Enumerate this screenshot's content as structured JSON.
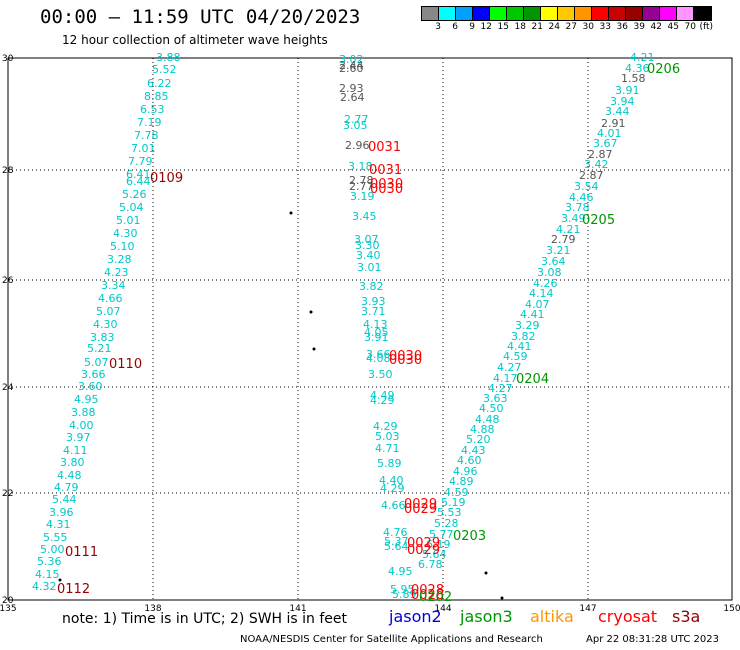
{
  "title": "00:00 – 11:59 UTC 04/20/2023",
  "subtitle": "12 hour collection of altimeter wave heights",
  "colorbar": {
    "labels": [
      "3",
      "6",
      "9",
      "12",
      "15",
      "18",
      "21",
      "24",
      "27",
      "30",
      "33",
      "36",
      "39",
      "42",
      "45",
      "70",
      "(ft)"
    ],
    "colors": [
      "#888888",
      "#00ffff",
      "#00a0ff",
      "#0000ff",
      "#00ff00",
      "#00c800",
      "#009600",
      "#ffff00",
      "#ffc800",
      "#ff9600",
      "#ff0000",
      "#c80000",
      "#960000",
      "#960096",
      "#ff00ff",
      "#ff96ff",
      "#000000"
    ]
  },
  "axes": {
    "x_ticks": [
      "135",
      "138",
      "141",
      "144",
      "147",
      "150"
    ],
    "y_ticks": [
      "20",
      "22",
      "24",
      "26",
      "28",
      "30"
    ]
  },
  "labels_values": [
    {
      "t": "3.88",
      "c": "#00c8c8"
    },
    {
      "t": "5.52",
      "c": "#00c8c8"
    },
    {
      "t": "6.22",
      "c": "#00c8c8"
    },
    {
      "t": "8.85",
      "c": "#00c8c8"
    },
    {
      "t": "6.53",
      "c": "#00c8c8"
    },
    {
      "t": "7.19",
      "c": "#00c8c8"
    },
    {
      "t": "7.78",
      "c": "#00c8c8"
    },
    {
      "t": "7.01",
      "c": "#00c8c8"
    },
    {
      "t": "7.79",
      "c": "#00c8c8"
    },
    {
      "t": "6.41",
      "c": "#00c8c8"
    },
    {
      "t": "6.44",
      "c": "#00c8c8"
    },
    {
      "t": "5.26",
      "c": "#00c8c8"
    },
    {
      "t": "5.04",
      "c": "#00c8c8"
    },
    {
      "t": "5.01",
      "c": "#00c8c8"
    },
    {
      "t": "4.30",
      "c": "#00c8c8"
    },
    {
      "t": "5.10",
      "c": "#00c8c8"
    },
    {
      "t": "3.28",
      "c": "#00c8c8"
    },
    {
      "t": "4.23",
      "c": "#00c8c8"
    },
    {
      "t": "3.34",
      "c": "#00c8c8"
    },
    {
      "t": "4.66",
      "c": "#00c8c8"
    },
    {
      "t": "5.07",
      "c": "#00c8c8"
    },
    {
      "t": "4.30",
      "c": "#00c8c8"
    },
    {
      "t": "3.83",
      "c": "#00c8c8"
    },
    {
      "t": "5.21",
      "c": "#00c8c8"
    },
    {
      "t": "5.07",
      "c": "#00c8c8"
    },
    {
      "t": "3.66",
      "c": "#00c8c8"
    },
    {
      "t": "3.60",
      "c": "#00c8c8"
    },
    {
      "t": "4.95",
      "c": "#00c8c8"
    },
    {
      "t": "3.88",
      "c": "#00c8c8"
    },
    {
      "t": "4.00",
      "c": "#00c8c8"
    },
    {
      "t": "3.97",
      "c": "#00c8c8"
    },
    {
      "t": "4.11",
      "c": "#00c8c8"
    },
    {
      "t": "3.80",
      "c": "#00c8c8"
    },
    {
      "t": "4.48",
      "c": "#00c8c8"
    },
    {
      "t": "4.79",
      "c": "#00c8c8"
    },
    {
      "t": "5.44",
      "c": "#00c8c8"
    },
    {
      "t": "3.96",
      "c": "#00c8c8"
    },
    {
      "t": "4.31",
      "c": "#00c8c8"
    },
    {
      "t": "5.55",
      "c": "#00c8c8"
    },
    {
      "t": "5.00",
      "c": "#00c8c8"
    },
    {
      "t": "5.36",
      "c": "#00c8c8"
    },
    {
      "t": "4.15",
      "c": "#00c8c8"
    },
    {
      "t": "4.32",
      "c": "#00c8c8"
    },
    {
      "t": "3.02",
      "c": "#00c8c8"
    },
    {
      "t": "2.44",
      "c": "#555555"
    },
    {
      "t": "2.60",
      "c": "#555555"
    },
    {
      "t": "2.93",
      "c": "#555555"
    },
    {
      "t": "2.64",
      "c": "#555555"
    },
    {
      "t": "2.77",
      "c": "#00c8c8"
    },
    {
      "t": "3.05",
      "c": "#00c8c8"
    },
    {
      "t": "2.96",
      "c": "#555555"
    },
    {
      "t": "3.18",
      "c": "#00c8c8"
    },
    {
      "t": "2.78",
      "c": "#555555"
    },
    {
      "t": "2.77",
      "c": "#555555"
    },
    {
      "t": "3.19",
      "c": "#00c8c8"
    },
    {
      "t": "3.45",
      "c": "#00c8c8"
    },
    {
      "t": "3.07",
      "c": "#00c8c8"
    },
    {
      "t": "3.30",
      "c": "#00c8c8"
    },
    {
      "t": "3.40",
      "c": "#00c8c8"
    },
    {
      "t": "3.01",
      "c": "#00c8c8"
    },
    {
      "t": "3.82",
      "c": "#00c8c8"
    },
    {
      "t": "3.93",
      "c": "#00c8c8"
    },
    {
      "t": "3.71",
      "c": "#00c8c8"
    },
    {
      "t": "4.13",
      "c": "#00c8c8"
    },
    {
      "t": "4.05",
      "c": "#00c8c8"
    },
    {
      "t": "3.91",
      "c": "#00c8c8"
    },
    {
      "t": "3.66",
      "c": "#00c8c8"
    },
    {
      "t": "4.08",
      "c": "#00c8c8"
    },
    {
      "t": "3.50",
      "c": "#00c8c8"
    },
    {
      "t": "4.49",
      "c": "#00c8c8"
    },
    {
      "t": "4.29",
      "c": "#00c8c8"
    },
    {
      "t": "4.29",
      "c": "#00c8c8"
    },
    {
      "t": "5.03",
      "c": "#00c8c8"
    },
    {
      "t": "4.71",
      "c": "#00c8c8"
    },
    {
      "t": "5.89",
      "c": "#00c8c8"
    },
    {
      "t": "4.40",
      "c": "#00c8c8"
    },
    {
      "t": "4.29",
      "c": "#00c8c8"
    },
    {
      "t": "4.66",
      "c": "#00c8c8"
    },
    {
      "t": "4.76",
      "c": "#00c8c8"
    },
    {
      "t": "5.37",
      "c": "#00c8c8"
    },
    {
      "t": "5.64",
      "c": "#00c8c8"
    },
    {
      "t": "4.95",
      "c": "#00c8c8"
    },
    {
      "t": "5.95",
      "c": "#00c8c8"
    },
    {
      "t": "5.89",
      "c": "#00c8c8"
    },
    {
      "t": "4.21",
      "c": "#00c8c8"
    },
    {
      "t": "4.36",
      "c": "#00c8c8"
    },
    {
      "t": "1.58",
      "c": "#555555"
    },
    {
      "t": "3.91",
      "c": "#00c8c8"
    },
    {
      "t": "3.94",
      "c": "#00c8c8"
    },
    {
      "t": "3.44",
      "c": "#00c8c8"
    },
    {
      "t": "2.91",
      "c": "#555555"
    },
    {
      "t": "4.01",
      "c": "#00c8c8"
    },
    {
      "t": "3.67",
      "c": "#00c8c8"
    },
    {
      "t": "2.87",
      "c": "#555555"
    },
    {
      "t": "3.42",
      "c": "#00c8c8"
    },
    {
      "t": "2.87",
      "c": "#555555"
    },
    {
      "t": "3.54",
      "c": "#00c8c8"
    },
    {
      "t": "4.46",
      "c": "#00c8c8"
    },
    {
      "t": "3.78",
      "c": "#00c8c8"
    },
    {
      "t": "3.49",
      "c": "#00c8c8"
    },
    {
      "t": "4.21",
      "c": "#00c8c8"
    },
    {
      "t": "2.79",
      "c": "#555555"
    },
    {
      "t": "3.21",
      "c": "#00c8c8"
    },
    {
      "t": "3.64",
      "c": "#00c8c8"
    },
    {
      "t": "3.08",
      "c": "#00c8c8"
    },
    {
      "t": "4.26",
      "c": "#00c8c8"
    },
    {
      "t": "4.14",
      "c": "#00c8c8"
    },
    {
      "t": "4.07",
      "c": "#00c8c8"
    },
    {
      "t": "4.41",
      "c": "#00c8c8"
    },
    {
      "t": "3.29",
      "c": "#00c8c8"
    },
    {
      "t": "3.82",
      "c": "#00c8c8"
    },
    {
      "t": "4.41",
      "c": "#00c8c8"
    },
    {
      "t": "4.59",
      "c": "#00c8c8"
    },
    {
      "t": "4.27",
      "c": "#00c8c8"
    },
    {
      "t": "4.17",
      "c": "#00c8c8"
    },
    {
      "t": "4.27",
      "c": "#00c8c8"
    },
    {
      "t": "3.63",
      "c": "#00c8c8"
    },
    {
      "t": "4.50",
      "c": "#00c8c8"
    },
    {
      "t": "4.48",
      "c": "#00c8c8"
    },
    {
      "t": "4.88",
      "c": "#00c8c8"
    },
    {
      "t": "5.20",
      "c": "#00c8c8"
    },
    {
      "t": "4.43",
      "c": "#00c8c8"
    },
    {
      "t": "4.60",
      "c": "#00c8c8"
    },
    {
      "t": "4.96",
      "c": "#00c8c8"
    },
    {
      "t": "4.89",
      "c": "#00c8c8"
    },
    {
      "t": "4.59",
      "c": "#00c8c8"
    },
    {
      "t": "5.19",
      "c": "#00c8c8"
    },
    {
      "t": "5.53",
      "c": "#00c8c8"
    },
    {
      "t": "5.28",
      "c": "#00c8c8"
    },
    {
      "t": "5.77",
      "c": "#00c8c8"
    },
    {
      "t": "6.19",
      "c": "#00c8c8"
    },
    {
      "t": "5.64",
      "c": "#00c8c8"
    },
    {
      "t": "6.78",
      "c": "#00c8c8"
    }
  ],
  "time_labels": [
    {
      "t": "0109",
      "c": "#960000"
    },
    {
      "t": "0110",
      "c": "#960000"
    },
    {
      "t": "0111",
      "c": "#960000"
    },
    {
      "t": "0112",
      "c": "#960000"
    },
    {
      "t": "0031",
      "c": "#ff0000"
    },
    {
      "t": "0031",
      "c": "#ff0000"
    },
    {
      "t": "0030",
      "c": "#ff0000"
    },
    {
      "t": "0030",
      "c": "#ff0000"
    },
    {
      "t": "0030",
      "c": "#ff0000"
    },
    {
      "t": "0030",
      "c": "#ff0000"
    },
    {
      "t": "0029",
      "c": "#ff0000"
    },
    {
      "t": "0029",
      "c": "#ff0000"
    },
    {
      "t": "0029",
      "c": "#ff0000"
    },
    {
      "t": "0029",
      "c": "#ff0000"
    },
    {
      "t": "0028",
      "c": "#ff0000"
    },
    {
      "t": "0028",
      "c": "#ff0000"
    },
    {
      "t": "0206",
      "c": "#009600"
    },
    {
      "t": "0205",
      "c": "#009600"
    },
    {
      "t": "0204",
      "c": "#009600"
    },
    {
      "t": "0203",
      "c": "#009600"
    },
    {
      "t": "0202",
      "c": "#009600"
    }
  ],
  "note": "note: 1) Time is in UTC; 2) SWH is in feet",
  "satellites": [
    {
      "name": "jason2",
      "color": "#0000dc"
    },
    {
      "name": "jason3",
      "color": "#009600"
    },
    {
      "name": "altika",
      "color": "#ff9600"
    },
    {
      "name": "cryosat",
      "color": "#ff0000"
    },
    {
      "name": "s3a",
      "color": "#960000"
    }
  ],
  "footer": "NOAA/NESDIS Center for Satellite Applications and Research",
  "footer_time": "Apr 22 08:31:28 UTC 2023"
}
